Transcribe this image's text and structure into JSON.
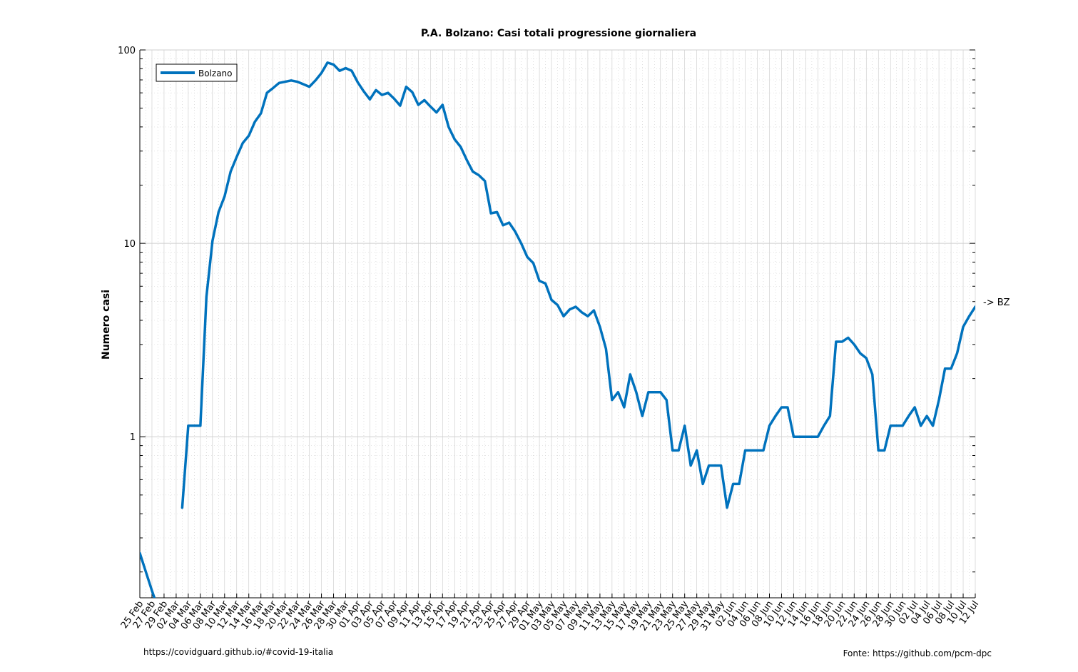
{
  "chart_data": {
    "type": "line",
    "title": "P.A. Bolzano: Casi totali progressione giornaliera",
    "xlabel": "",
    "ylabel": "Numero casi",
    "y_scale": "log",
    "ylim": [
      0.147,
      100
    ],
    "y_ticks": [
      "1",
      "10",
      "100"
    ],
    "grid": true,
    "legend": "top-left",
    "x_start": "2020-02-25",
    "x_end": "2020-07-12",
    "x_tick_labels": [
      "25 Feb",
      "27 Feb",
      "29 Feb",
      "02 Mar",
      "04 Mar",
      "06 Mar",
      "08 Mar",
      "10 Mar",
      "12 Mar",
      "14 Mar",
      "16 Mar",
      "18 Mar",
      "20 Mar",
      "22 Mar",
      "24 Mar",
      "26 Mar",
      "28 Mar",
      "30 Mar",
      "01 Apr",
      "03 Apr",
      "05 Apr",
      "07 Apr",
      "09 Apr",
      "11 Apr",
      "13 Apr",
      "15 Apr",
      "17 Apr",
      "19 Apr",
      "21 Apr",
      "23 Apr",
      "25 Apr",
      "27 Apr",
      "29 Apr",
      "01 May",
      "03 May",
      "05 May",
      "07 May",
      "09 May",
      "11 May",
      "13 May",
      "15 May",
      "17 May",
      "19 May",
      "21 May",
      "23 May",
      "25 May",
      "27 May",
      "29 May",
      "31 May",
      "02 Jun",
      "04 Jun",
      "06 Jun",
      "08 Jun",
      "10 Jun",
      "12 Jun",
      "14 Jun",
      "16 Jun",
      "18 Jun",
      "20 Jun",
      "22 Jun",
      "24 Jun",
      "26 Jun",
      "28 Jun",
      "30 Jun",
      "02 Jul",
      "04 Jul",
      "06 Jul",
      "08 Jul",
      "10 Jul",
      "12 Jul"
    ],
    "series": [
      {
        "name": "Bolzano",
        "color": "#0072bd",
        "segments": [
          [
            [
              "2020-02-25",
              0.25
            ],
            [
              "2020-02-26",
              0.2
            ],
            [
              "2020-02-27",
              0.16
            ],
            [
              "2020-02-28",
              0.13
            ]
          ],
          [
            [
              "2020-03-03",
              0.43
            ],
            [
              "2020-03-04",
              1.14
            ],
            [
              "2020-03-05",
              1.14
            ],
            [
              "2020-03-06",
              1.14
            ],
            [
              "2020-03-07",
              5.3
            ],
            [
              "2020-03-08",
              10.3
            ],
            [
              "2020-03-09",
              14.5
            ],
            [
              "2020-03-10",
              17.5
            ],
            [
              "2020-03-11",
              23.5
            ],
            [
              "2020-03-12",
              28
            ],
            [
              "2020-03-13",
              33
            ],
            [
              "2020-03-14",
              36
            ],
            [
              "2020-03-15",
              42.5
            ],
            [
              "2020-03-16",
              47
            ],
            [
              "2020-03-17",
              60
            ],
            [
              "2020-03-18",
              63.5
            ],
            [
              "2020-03-19",
              67.5
            ],
            [
              "2020-03-20",
              68.5
            ],
            [
              "2020-03-21",
              69.5
            ],
            [
              "2020-03-22",
              68.5
            ],
            [
              "2020-03-23",
              66.5
            ],
            [
              "2020-03-24",
              64.5
            ],
            [
              "2020-03-25",
              69.5
            ],
            [
              "2020-03-26",
              76
            ],
            [
              "2020-03-27",
              86
            ],
            [
              "2020-03-28",
              84
            ],
            [
              "2020-03-29",
              78
            ],
            [
              "2020-03-30",
              80.5
            ],
            [
              "2020-03-31",
              78
            ],
            [
              "2020-04-01",
              68
            ],
            [
              "2020-04-02",
              61
            ],
            [
              "2020-04-03",
              55.5
            ],
            [
              "2020-04-04",
              62
            ],
            [
              "2020-04-05",
              58.5
            ],
            [
              "2020-04-06",
              60
            ],
            [
              "2020-04-07",
              56
            ],
            [
              "2020-04-08",
              51.5
            ],
            [
              "2020-04-09",
              64.5
            ],
            [
              "2020-04-10",
              60.5
            ],
            [
              "2020-04-11",
              52
            ],
            [
              "2020-04-12",
              55
            ],
            [
              "2020-04-13",
              51
            ],
            [
              "2020-04-14",
              47.5
            ],
            [
              "2020-04-15",
              52
            ],
            [
              "2020-04-16",
              40
            ],
            [
              "2020-04-17",
              34.5
            ],
            [
              "2020-04-18",
              31.5
            ],
            [
              "2020-04-19",
              27
            ],
            [
              "2020-04-20",
              23.5
            ],
            [
              "2020-04-21",
              22.5
            ],
            [
              "2020-04-22",
              21
            ],
            [
              "2020-04-23",
              14.3
            ],
            [
              "2020-04-24",
              14.5
            ],
            [
              "2020-04-25",
              12.4
            ],
            [
              "2020-04-26",
              12.8
            ],
            [
              "2020-04-27",
              11.5
            ],
            [
              "2020-04-28",
              10
            ],
            [
              "2020-04-29",
              8.5
            ],
            [
              "2020-04-30",
              7.9
            ],
            [
              "2020-05-01",
              6.4
            ],
            [
              "2020-05-02",
              6.2
            ],
            [
              "2020-05-03",
              5.1
            ],
            [
              "2020-05-04",
              4.8
            ],
            [
              "2020-05-05",
              4.2
            ],
            [
              "2020-05-06",
              4.55
            ],
            [
              "2020-05-07",
              4.7
            ],
            [
              "2020-05-08",
              4.4
            ],
            [
              "2020-05-09",
              4.2
            ],
            [
              "2020-05-10",
              4.5
            ],
            [
              "2020-05-11",
              3.7
            ],
            [
              "2020-05-12",
              2.85
            ],
            [
              "2020-05-13",
              1.55
            ],
            [
              "2020-05-14",
              1.7
            ],
            [
              "2020-05-15",
              1.42
            ],
            [
              "2020-05-16",
              2.1
            ],
            [
              "2020-05-17",
              1.7
            ],
            [
              "2020-05-18",
              1.28
            ],
            [
              "2020-05-19",
              1.7
            ],
            [
              "2020-05-20",
              1.7
            ],
            [
              "2020-05-21",
              1.7
            ],
            [
              "2020-05-22",
              1.55
            ],
            [
              "2020-05-23",
              0.85
            ],
            [
              "2020-05-24",
              0.85
            ],
            [
              "2020-05-25",
              1.14
            ],
            [
              "2020-05-26",
              0.71
            ],
            [
              "2020-05-27",
              0.85
            ],
            [
              "2020-05-28",
              0.57
            ],
            [
              "2020-05-29",
              0.71
            ],
            [
              "2020-05-30",
              0.71
            ],
            [
              "2020-05-31",
              0.71
            ],
            [
              "2020-06-01",
              0.43
            ],
            [
              "2020-06-02",
              0.57
            ],
            [
              "2020-06-03",
              0.57
            ],
            [
              "2020-06-04",
              0.85
            ],
            [
              "2020-06-05",
              0.85
            ],
            [
              "2020-06-06",
              0.85
            ],
            [
              "2020-06-07",
              0.85
            ],
            [
              "2020-06-08",
              1.14
            ],
            [
              "2020-06-09",
              1.28
            ],
            [
              "2020-06-10",
              1.42
            ],
            [
              "2020-06-11",
              1.42
            ],
            [
              "2020-06-12",
              1.0
            ],
            [
              "2020-06-13",
              1.0
            ],
            [
              "2020-06-14",
              1.0
            ],
            [
              "2020-06-15",
              1.0
            ],
            [
              "2020-06-16",
              1.0
            ],
            [
              "2020-06-17",
              1.14
            ],
            [
              "2020-06-18",
              1.28
            ],
            [
              "2020-06-19",
              3.1
            ],
            [
              "2020-06-20",
              3.1
            ],
            [
              "2020-06-21",
              3.25
            ],
            [
              "2020-06-22",
              3.0
            ],
            [
              "2020-06-23",
              2.7
            ],
            [
              "2020-06-24",
              2.55
            ],
            [
              "2020-06-25",
              2.1
            ],
            [
              "2020-06-26",
              0.85
            ],
            [
              "2020-06-27",
              0.85
            ],
            [
              "2020-06-28",
              1.14
            ],
            [
              "2020-06-29",
              1.14
            ],
            [
              "2020-06-30",
              1.14
            ],
            [
              "2020-07-01",
              1.28
            ],
            [
              "2020-07-02",
              1.42
            ],
            [
              "2020-07-03",
              1.14
            ],
            [
              "2020-07-04",
              1.28
            ],
            [
              "2020-07-05",
              1.14
            ],
            [
              "2020-07-06",
              1.55
            ],
            [
              "2020-07-07",
              2.25
            ],
            [
              "2020-07-08",
              2.25
            ],
            [
              "2020-07-09",
              2.7
            ],
            [
              "2020-07-10",
              3.7
            ],
            [
              "2020-07-11",
              4.2
            ],
            [
              "2020-07-12",
              4.7
            ],
            [
              "2020-07-13",
              5.0
            ]
          ]
        ]
      }
    ],
    "annotation": "-> BZ"
  },
  "footer": {
    "left": "https://covidguard.github.io/#covid-19-italia",
    "right": "Fonte: https://github.com/pcm-dpc"
  }
}
